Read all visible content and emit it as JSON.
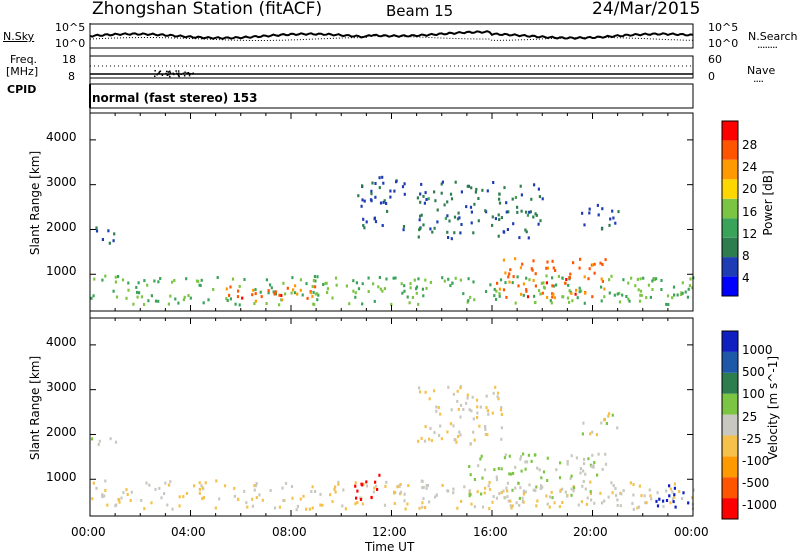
{
  "header": {
    "title": "Zhongshan Station (fitACF)",
    "beam": "Beam 15",
    "date": "24/Mar/2015"
  },
  "noise_panel": {
    "left_label": "N.Sky",
    "left_ticks": [
      "10^5",
      "10^0"
    ],
    "right_ticks": [
      "10^5",
      "10^0"
    ],
    "right_label": "N.Search",
    "right_legend_line": "........"
  },
  "freq_panel": {
    "left_label_line1": "Freq.",
    "left_label_line2": "[MHz]",
    "left_ticks": [
      "18",
      "8"
    ],
    "right_ticks": [
      "60",
      "0"
    ],
    "right_label": "Nave",
    "right_legend_line": "....",
    "cpid_label": "CPID"
  },
  "mode_text": "normal (fast stereo) 153",
  "x_axis": {
    "label": "Time UT",
    "ticks": [
      "00:00",
      "04:00",
      "08:00",
      "12:00",
      "16:00",
      "20:00",
      "00:00"
    ]
  },
  "colors": {
    "scale": [
      "#0000ff",
      "#1e3cb4",
      "#2e7d4f",
      "#3aa35a",
      "#7cc542",
      "#ffd700",
      "#ff9900",
      "#ff5500",
      "#ff0000"
    ],
    "velocity_scale": [
      "#ff0000",
      "#ff5500",
      "#ff9900",
      "#f5c14a",
      "#c8c8c0",
      "#7cc542",
      "#2e7d4f",
      "#1e58a8",
      "#1020c0"
    ]
  },
  "chart_data": [
    {
      "type": "heatmap",
      "name": "power",
      "ylabel": "Slant Range [km]",
      "yticks": [
        "1000",
        "2000",
        "3000",
        "4000"
      ],
      "ylim": [
        180,
        4600
      ],
      "xlim": [
        0,
        24
      ],
      "colorbar_label": "Power [dB]",
      "colorbar_ticks": [
        "28",
        "24",
        "20",
        "16",
        "12",
        "8",
        "4"
      ],
      "colorbar_range": [
        0,
        32
      ],
      "scatter_regions": [
        {
          "t0": 0.0,
          "t1": 1.0,
          "r0": 1700,
          "r1": 2100,
          "v": 7
        },
        {
          "t0": 0.0,
          "t1": 24.0,
          "r0": 350,
          "r1": 1000,
          "v": 14
        },
        {
          "t0": 5.0,
          "t1": 9.0,
          "r0": 400,
          "r1": 800,
          "v": 26
        },
        {
          "t0": 16.0,
          "t1": 20.5,
          "r0": 500,
          "r1": 1400,
          "v": 26
        },
        {
          "t0": 10.5,
          "t1": 12.5,
          "r0": 2000,
          "r1": 3200,
          "v": 7
        },
        {
          "t0": 13.0,
          "t1": 18.0,
          "r0": 1800,
          "r1": 3100,
          "v": 8
        },
        {
          "t0": 19.5,
          "t1": 21.0,
          "r0": 2000,
          "r1": 2600,
          "v": 7
        }
      ]
    },
    {
      "type": "heatmap",
      "name": "velocity",
      "ylabel": "Slant Range [km]",
      "yticks": [
        "1000",
        "2000",
        "3000",
        "4000"
      ],
      "ylim": [
        180,
        4600
      ],
      "xlim": [
        0,
        24
      ],
      "colorbar_label": "Velocity [m s^-1]",
      "colorbar_ticks": [
        "1000",
        "500",
        "100",
        "25",
        "-25",
        "-100",
        "-500",
        "-1000"
      ],
      "colorbar_range": [
        -1000,
        1000
      ],
      "scatter_regions": [
        {
          "t0": 0.0,
          "t1": 1.0,
          "r0": 1700,
          "r1": 2000,
          "v": 0
        },
        {
          "t0": 0.0,
          "t1": 24.0,
          "r0": 350,
          "r1": 1000,
          "v": -100
        },
        {
          "t0": 10.5,
          "t1": 11.5,
          "r0": 500,
          "r1": 1200,
          "v": -1000
        },
        {
          "t0": 15.0,
          "t1": 20.5,
          "r0": 600,
          "r1": 1600,
          "v": 100
        },
        {
          "t0": 22.5,
          "t1": 24.0,
          "r0": 400,
          "r1": 900,
          "v": 1000
        },
        {
          "t0": 13.0,
          "t1": 16.5,
          "r0": 1800,
          "r1": 3100,
          "v": -100
        },
        {
          "t0": 19.5,
          "t1": 21.0,
          "r0": 2000,
          "r1": 2500,
          "v": 0
        }
      ]
    }
  ]
}
